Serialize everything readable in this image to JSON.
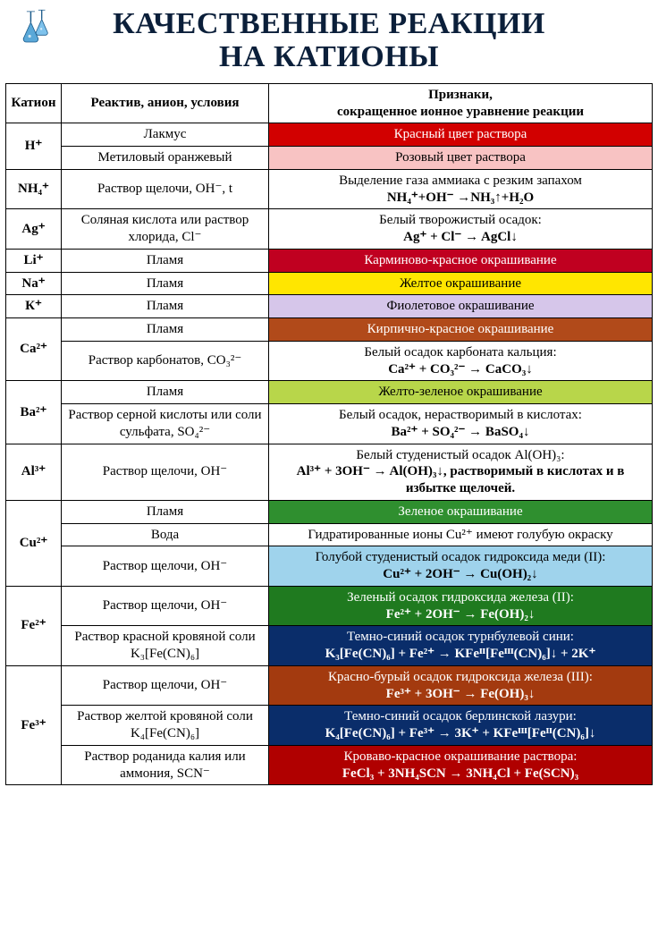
{
  "title_line1": "КАЧЕСТВЕННЫЕ РЕАКЦИИ",
  "title_line2": "НА КАТИОНЫ",
  "colors": {
    "red": "#d20000",
    "pink": "#f8c3c3",
    "carmine": "#c00020",
    "yellow": "#ffe600",
    "violet": "#d6c6ea",
    "brickred": "#b14a1a",
    "yellowgreen": "#b8d64a",
    "green": "#2f8f2f",
    "lightblue": "#9fd3ec",
    "darkgreen": "#1f7a1f",
    "darkblue": "#0a2d6a",
    "rustred": "#a33a0f",
    "darkblue2": "#0a2d6a",
    "bloodred": "#b00000",
    "text_dark": "#0b1f3a"
  },
  "headers": {
    "cation": "Катион",
    "reagent": "Реактив, анион, условия",
    "sign": "Признаки,",
    "sign2": "сокращенное ионное уравнение реакции"
  },
  "rows": [
    {
      "cation": "H⁺",
      "reagent": "Лакмус",
      "sign_hdr": "Красный цвет раствора",
      "bg": "red",
      "textclass": "white-text"
    },
    {
      "reagent": "Метиловый оранжевый",
      "sign_hdr": "Розовый цвет раствора",
      "bg": "pink",
      "textclass": "black-text"
    },
    {
      "cation": "NH₄⁺",
      "reagent": "Раствор щелочи,  OH⁻, t",
      "sign_hdr": "Выделение  газа аммиака с резким запахом",
      "sign_eq": "NH₄⁺+OH⁻ →NH₃↑+H₂O"
    },
    {
      "cation": "Ag⁺",
      "reagent": "Соляная кислота или раствор хлорида,  Cl⁻",
      "sign_hdr": "Белый творожистый осадок:",
      "sign_eq": "Ag⁺ + Cl⁻ → AgCl↓"
    },
    {
      "cation": "Li⁺",
      "reagent": "Пламя",
      "sign_hdr": "Карминово-красное окрашивание",
      "bg": "carmine",
      "textclass": "white-text"
    },
    {
      "cation": "Na⁺",
      "reagent": "Пламя",
      "sign_hdr": "Желтое окрашивание",
      "bg": "yellow",
      "textclass": "black-text"
    },
    {
      "cation": "К⁺",
      "reagent": "Пламя",
      "sign_hdr": "Фиолетовое окрашивание",
      "bg": "violet",
      "textclass": "black-text"
    },
    {
      "cation": "Ca²⁺",
      "reagent": "Пламя",
      "sign_hdr": "Кирпично-красное окрашивание",
      "bg": "brickred",
      "textclass": "white-text"
    },
    {
      "reagent": "Раствор карбонатов, CO₃²⁻",
      "sign_hdr": "Белый осадок карбоната кальция:",
      "sign_eq": "Ca²⁺ + CO₃²⁻ → CaCO₃↓"
    },
    {
      "cation": "Ba²⁺",
      "reagent": "Пламя",
      "sign_hdr": "Желто-зеленое окрашивание",
      "bg": "yellowgreen",
      "textclass": "black-text"
    },
    {
      "reagent": "Раствор серной кислоты или соли сульфата,  SO₄²⁻",
      "sign_hdr": "Белый осадок, нерастворимый в кислотах:",
      "sign_eq": "Ba²⁺ + SO₄²⁻ → BaSO₄↓"
    },
    {
      "cation": "Al³⁺",
      "reagent": "Раствор щелочи,  OH⁻",
      "sign_hdr": "Белый студенистый осадок Al(OH)₃:",
      "sign_eq": "Al³⁺ + 3OH⁻ → Al(OH)₃↓, растворимый в кислотах и в избытке щелочей."
    },
    {
      "cation": "Cu²⁺",
      "reagent": "Пламя",
      "sign_hdr": "Зеленое окрашивание",
      "bg": "green",
      "textclass": "white-text"
    },
    {
      "reagent": "Вода",
      "sign_hdr": "Гидратированные ионы Cu²⁺ имеют голубую окраску"
    },
    {
      "reagent": "Раствор щелочи,  OH⁻",
      "sign_hdr": "Голубой студенистый осадок гидроксида меди (II):",
      "sign_eq": "Cu²⁺ + 2OH⁻ → Cu(OH)₂↓",
      "bg": "lightblue",
      "textclass": "black-text"
    },
    {
      "cation": "Fe²⁺",
      "reagent": "Раствор щелочи,  OH⁻",
      "sign_hdr": "Зеленый осадок гидроксида железа (II):",
      "sign_eq": "Fe²⁺ + 2OH⁻ → Fe(OH)₂↓",
      "bg": "darkgreen",
      "textclass": "white-text"
    },
    {
      "reagent": "Раствор красной кровяной соли K₃[Fe(CN)₆]",
      "sign_hdr": "Темно-синий осадок турнбулевой сини:",
      "sign_eq": "K₃[Fe(CN)₆] + Fe²⁺ → KFeᴵᴵ[Feᴵᴵᴵ(CN)₆]↓ + 2K⁺",
      "bg": "darkblue",
      "textclass": "white-text"
    },
    {
      "cation": "Fe³⁺",
      "reagent": "Раствор щелочи,  OH⁻",
      "sign_hdr": "Красно-бурый осадок гидроксида железа (III):",
      "sign_eq": "Fe³⁺ + 3OH⁻ → Fe(OH)₃↓",
      "bg": "rustred",
      "textclass": "white-text"
    },
    {
      "reagent": "Раствор желтой кровяной соли K₄[Fe(CN)₆]",
      "sign_hdr": "Темно-синий осадок берлинской лазури:",
      "sign_eq": "K₄[Fe(CN)₆] + Fe³⁺ → 3K⁺ + KFeᴵᴵᴵ[Feᴵᴵ(CN)₆]↓",
      "bg": "darkblue2",
      "textclass": "white-text"
    },
    {
      "reagent": "Раствор роданида калия или аммония, SCN⁻",
      "sign_hdr": "Кроваво-красное окрашивание раствора:",
      "sign_eq": "FeCl₃ + 3NH₄SCN → 3NH₄Cl + Fe(SCN)₃",
      "bg": "bloodred",
      "textclass": "white-text"
    }
  ],
  "rowspans": {
    "0": 2,
    "7": 2,
    "9": 2,
    "12": 3,
    "15": 2,
    "17": 3
  }
}
